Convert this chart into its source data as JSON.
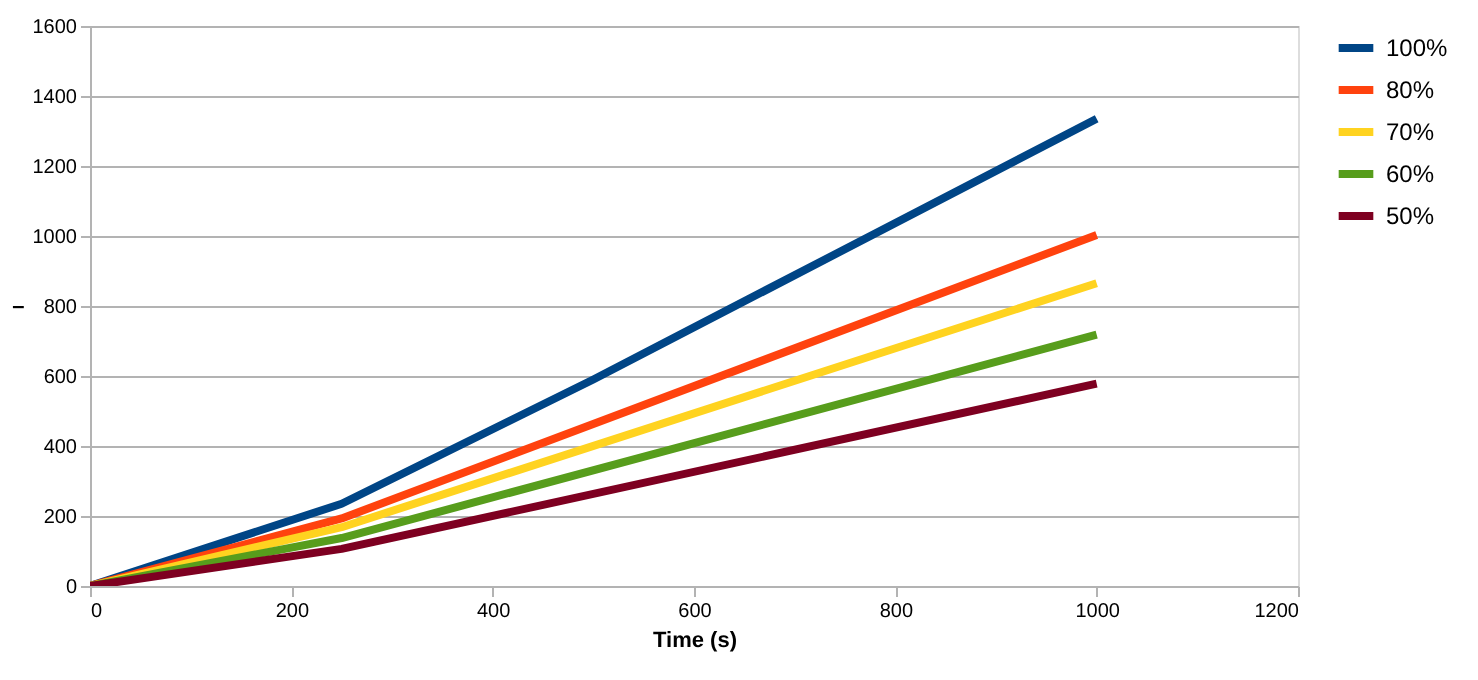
{
  "chart_data": {
    "type": "line",
    "xlabel": "Time (s)",
    "ylabel": "–",
    "xlim": [
      0,
      1200
    ],
    "xticks": [
      0,
      200,
      400,
      600,
      800,
      1000,
      1200
    ],
    "ylim": [
      0,
      1600
    ],
    "yticks": [
      0,
      200,
      400,
      600,
      800,
      1000,
      1200,
      1400,
      1600
    ],
    "grid": "y",
    "legend": "right",
    "marker": "none",
    "line_style": "solid",
    "series": [
      {
        "name": "100%",
        "color": "#004586",
        "x": [
          0,
          250,
          500,
          1000
        ],
        "values": [
          0,
          235,
          590,
          1335
        ]
      },
      {
        "name": "80%",
        "color": "#ff420e",
        "x": [
          0,
          250,
          1000
        ],
        "values": [
          0,
          193,
          1003
        ]
      },
      {
        "name": "70%",
        "color": "#ffd320",
        "x": [
          0,
          250,
          1000
        ],
        "values": [
          0,
          168,
          865
        ]
      },
      {
        "name": "60%",
        "color": "#579d1c",
        "x": [
          0,
          250,
          1000
        ],
        "values": [
          0,
          137,
          718
        ]
      },
      {
        "name": "50%",
        "color": "#7e0021",
        "x": [
          0,
          250,
          1000
        ],
        "values": [
          0,
          106,
          578
        ]
      }
    ]
  }
}
